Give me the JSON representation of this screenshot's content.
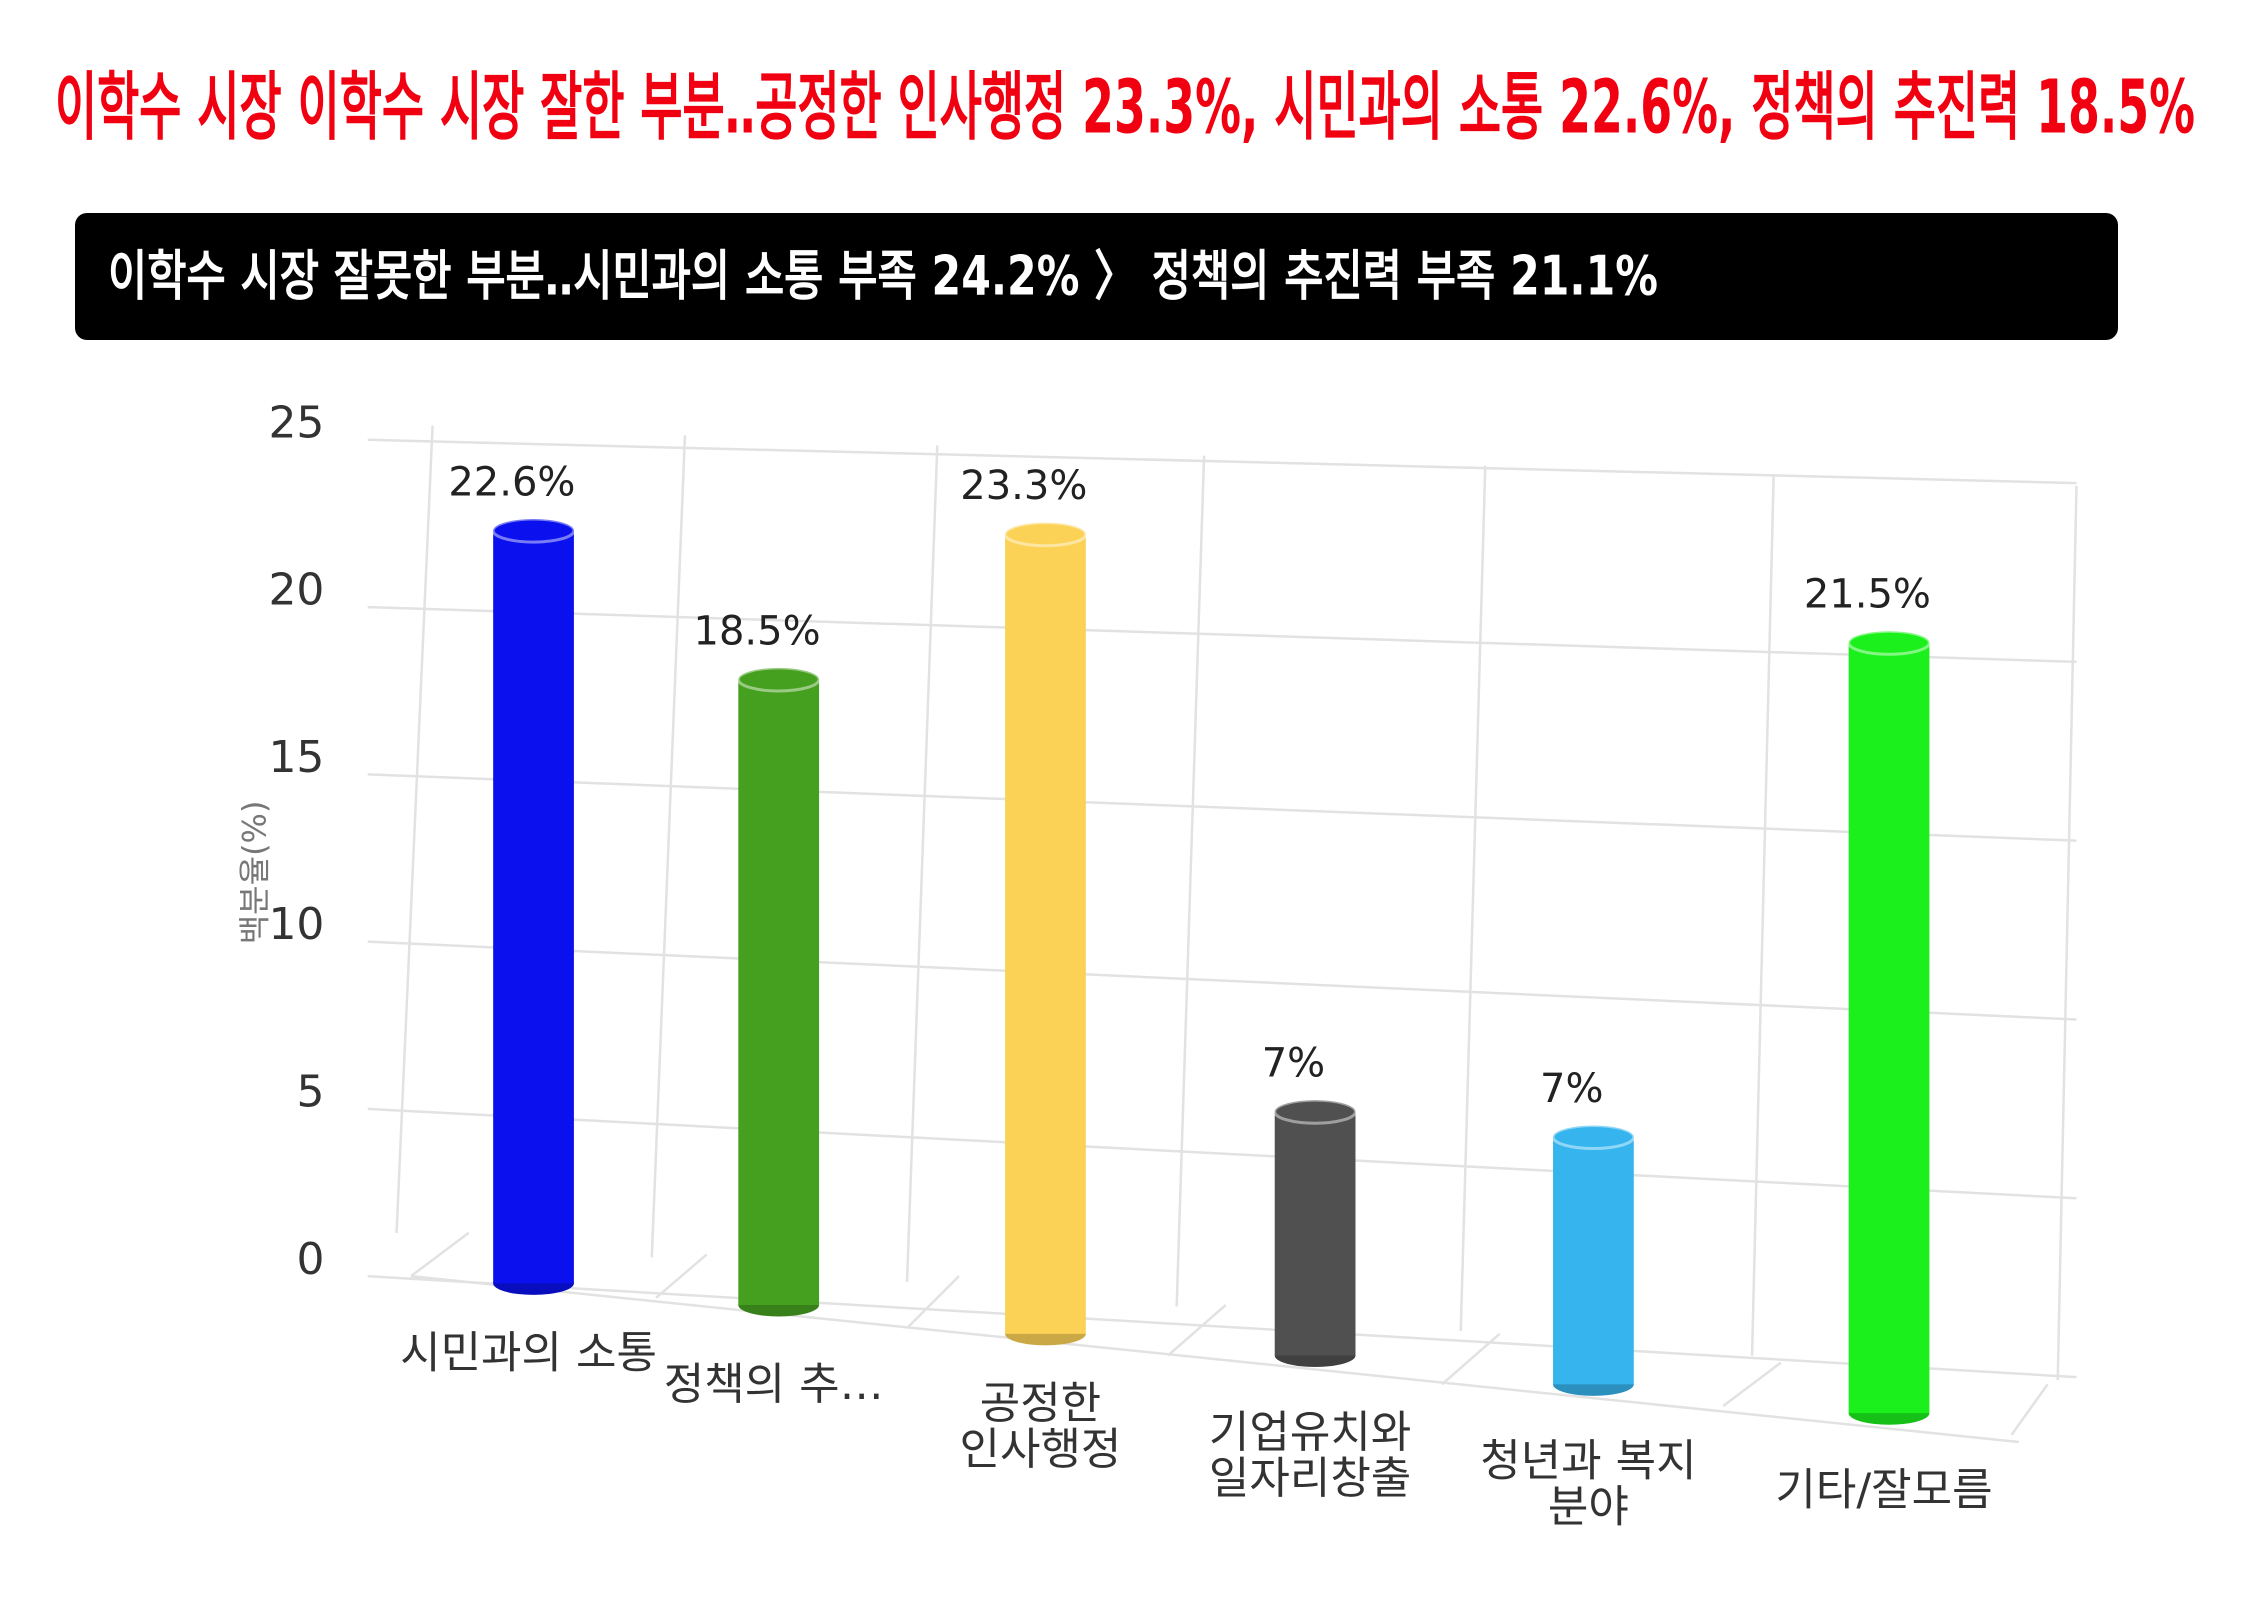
{
  "title": "이학수 시장 이학수 시장 잘한 부분‥공정한 인사행정 23.3%, 시민과의 소통 22.6%, 정책의 추진력 18.5%",
  "subtitle": "이학수 시장 잘못한 부분‥시민과의 소통 부족 24.2% 〉 정책의 추진력 부족 21.1%",
  "chart_data": {
    "type": "bar",
    "y_label": "백분율(%)",
    "categories": [
      "시민과의 소통",
      "정책의 추…",
      "공정한\n인사행정",
      "기업유치와\n일자리창출",
      "청년과 복지\n분야",
      "기타/잘모름"
    ],
    "values": [
      22.6,
      18.5,
      23.3,
      7,
      7,
      21.5
    ],
    "value_labels": [
      "22.6%",
      "18.5%",
      "23.3%",
      "7%",
      "7%",
      "21.5%"
    ],
    "colors": [
      "#0a10ee",
      "#46a020",
      "#fcd256",
      "#505050",
      "#36b4ee",
      "#1cf01c"
    ],
    "ylim": [
      0,
      25
    ],
    "yticks": [
      0,
      5,
      10,
      15,
      20,
      25
    ],
    "grid": true
  }
}
